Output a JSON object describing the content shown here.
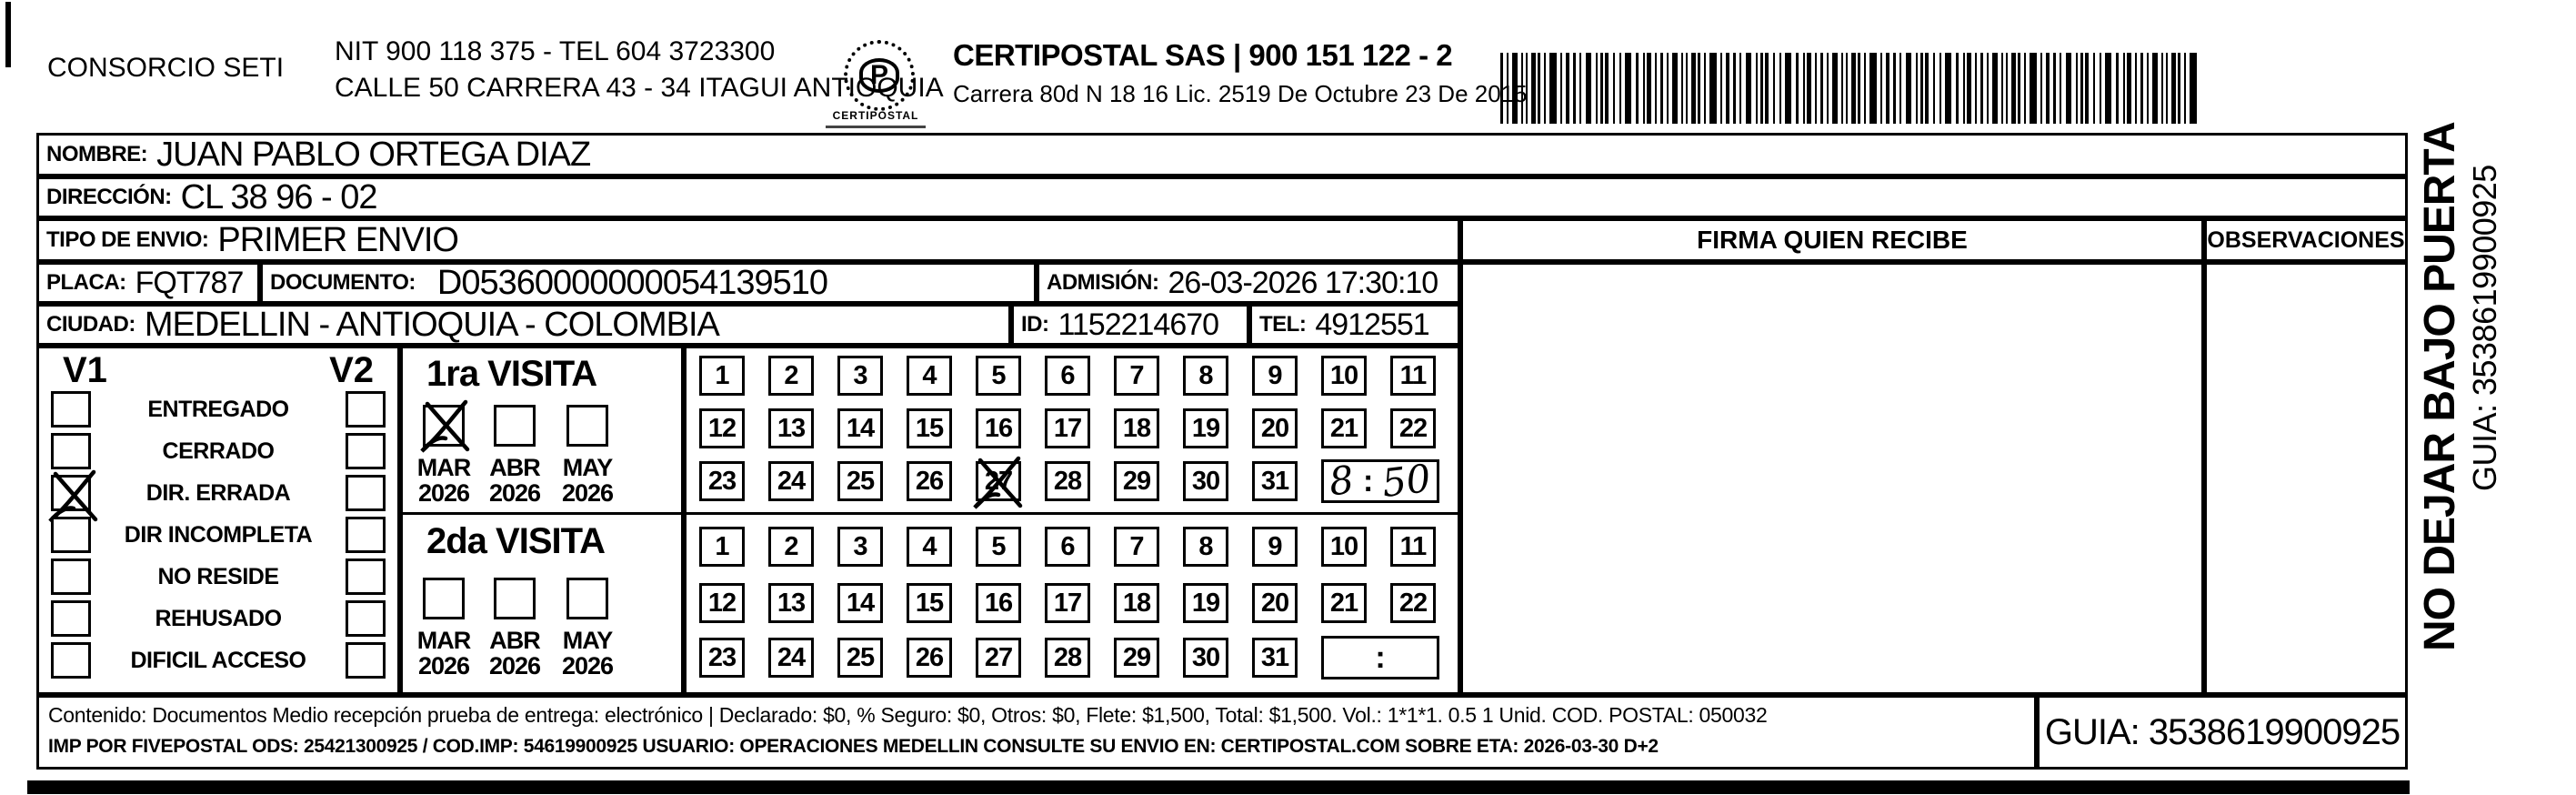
{
  "header": {
    "left_company": "CONSORCIO SETI",
    "nit_line": "NIT 900 118 375 - TEL 604 3723300",
    "address_line": "CALLE 50 CARRERA 43 - 34 ITAGUI ANTIOQUIA",
    "logo_text": "CERTIPOSTAL",
    "right_company": "CERTIPOSTAL SAS | 900 151 122 - 2",
    "right_license": "Carrera 80d N 18 16  Lic. 2519 De Octubre 23 De 2015"
  },
  "shipment": {
    "nombre_label": "NOMBRE:",
    "nombre": "JUAN PABLO ORTEGA DIAZ",
    "direccion_label": "DIRECCIÓN:",
    "direccion": "CL 38 96 - 02",
    "tipo_label": "TIPO DE ENVIO:",
    "tipo": "PRIMER ENVIO",
    "placa_label": "PLACA:",
    "placa": "FQT787",
    "documento_label": "DOCUMENTO:",
    "documento": "D05360000000054139510",
    "admision_label": "ADMISIÓN:",
    "admision": "26-03-2026 17:30:10",
    "ciudad_label": "CIUDAD:",
    "ciudad": "MEDELLIN - ANTIOQUIA - COLOMBIA",
    "id_label": "ID:",
    "id_value": "1152214670",
    "tel_label": "TEL:",
    "tel_value": "4912551"
  },
  "status_panel": {
    "v1_label": "V1",
    "v2_label": "V2",
    "options": [
      {
        "label": "ENTREGADO",
        "v1": false,
        "v2": false
      },
      {
        "label": "CERRADO",
        "v1": false,
        "v2": false
      },
      {
        "label": "DIR. ERRADA",
        "v1": true,
        "v2": false
      },
      {
        "label": "DIR INCOMPLETA",
        "v1": false,
        "v2": false
      },
      {
        "label": "NO RESIDE",
        "v1": false,
        "v2": false
      },
      {
        "label": "REHUSADO",
        "v1": false,
        "v2": false
      },
      {
        "label": "DIFICIL ACCESO",
        "v1": false,
        "v2": false
      }
    ]
  },
  "visits": [
    {
      "title": "1ra VISITA",
      "months": [
        {
          "label": "MAR",
          "year": "2026",
          "checked": true
        },
        {
          "label": "ABR",
          "year": "2026",
          "checked": false
        },
        {
          "label": "MAY",
          "year": "2026",
          "checked": false
        }
      ],
      "day_rows": [
        [
          1,
          2,
          3,
          4,
          5,
          6,
          7,
          8,
          9,
          10,
          11
        ],
        [
          12,
          13,
          14,
          15,
          16,
          17,
          18,
          19,
          20,
          21,
          22
        ],
        [
          23,
          24,
          25,
          26,
          27,
          28,
          29,
          30,
          31
        ]
      ],
      "crossed_days": [
        27
      ],
      "time_hour": "8",
      "time_separator": ":",
      "time_minutes": "50"
    },
    {
      "title": "2da VISITA",
      "months": [
        {
          "label": "MAR",
          "year": "2026",
          "checked": false
        },
        {
          "label": "ABR",
          "year": "2026",
          "checked": false
        },
        {
          "label": "MAY",
          "year": "2026",
          "checked": false
        }
      ],
      "day_rows": [
        [
          1,
          2,
          3,
          4,
          5,
          6,
          7,
          8,
          9,
          10,
          11
        ],
        [
          12,
          13,
          14,
          15,
          16,
          17,
          18,
          19,
          20,
          21,
          22
        ],
        [
          23,
          24,
          25,
          26,
          27,
          28,
          29,
          30,
          31
        ]
      ],
      "crossed_days": [],
      "time_hour": "",
      "time_separator": ":",
      "time_minutes": ""
    }
  ],
  "right_panel": {
    "firma_header": "FIRMA QUIEN RECIBE",
    "observaciones_header": "OBSERVACIONES"
  },
  "side_text": {
    "warning": "NO DEJAR BAJO PUERTA",
    "guia": "GUIA: 3538619900925"
  },
  "footer": {
    "line1": "Contenido: Documentos Medio recepción prueba de entrega: electrónico | Declarado: $0, % Seguro: $0, Otros: $0, Flete: $1,500, Total: $1,500. Vol.: 1*1*1. 0.5 1 Unid. COD. POSTAL: 050032",
    "line2": "IMP POR FIVEPOSTAL ODS: 25421300925 / COD.IMP: 54619900925 USUARIO: OPERACIONES MEDELLIN CONSULTE SU ENVIO EN: CERTIPOSTAL.COM SOBRE ETA: 2026-03-30 D+2",
    "guia_box": "GUIA: 3538619900925"
  }
}
